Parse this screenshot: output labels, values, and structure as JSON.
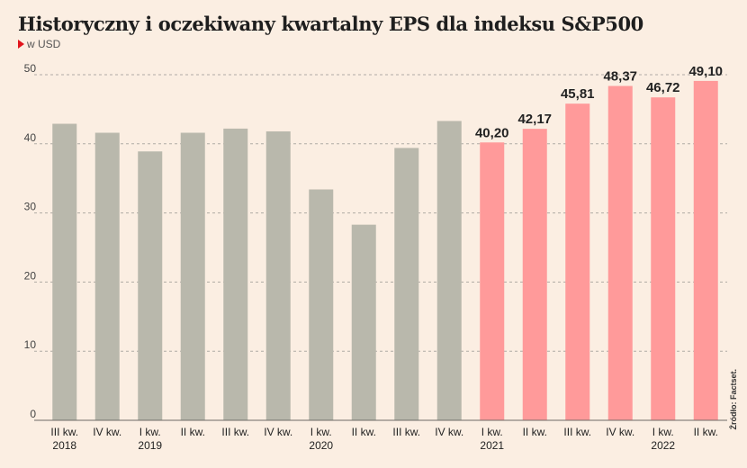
{
  "title": "Historyczny i oczekiwany kwartalny EPS dla indeksu S&P500",
  "subtitle": "w USD",
  "source": "Źródło: Factset.",
  "colors": {
    "historical": "#b9b8ac",
    "forecast": "#ff9a9a",
    "grid": "#b0aba5"
  },
  "chart_data": {
    "type": "bar",
    "ylim": [
      0,
      50
    ],
    "yticks": [
      0,
      10,
      20,
      30,
      40,
      50
    ],
    "grid": true,
    "categories": [
      {
        "line1": "III kw.",
        "line2": "2018"
      },
      {
        "line1": "IV kw.",
        "line2": ""
      },
      {
        "line1": "I kw.",
        "line2": "2019"
      },
      {
        "line1": "II kw.",
        "line2": ""
      },
      {
        "line1": "III kw.",
        "line2": ""
      },
      {
        "line1": "IV kw.",
        "line2": ""
      },
      {
        "line1": "I kw.",
        "line2": "2020"
      },
      {
        "line1": "II kw.",
        "line2": ""
      },
      {
        "line1": "III kw.",
        "line2": ""
      },
      {
        "line1": "IV kw.",
        "line2": ""
      },
      {
        "line1": "I kw.",
        "line2": "2021"
      },
      {
        "line1": "II kw.",
        "line2": ""
      },
      {
        "line1": "III kw.",
        "line2": ""
      },
      {
        "line1": "IV kw.",
        "line2": ""
      },
      {
        "line1": "I kw.",
        "line2": "2022"
      },
      {
        "line1": "II kw.",
        "line2": ""
      }
    ],
    "values": [
      42.9,
      41.6,
      38.9,
      41.6,
      42.2,
      41.8,
      33.4,
      28.3,
      39.4,
      43.3,
      40.2,
      42.17,
      45.81,
      48.37,
      46.72,
      49.1
    ],
    "forecast": [
      false,
      false,
      false,
      false,
      false,
      false,
      false,
      false,
      false,
      false,
      true,
      true,
      true,
      true,
      true,
      true
    ],
    "data_labels": [
      "",
      "",
      "",
      "",
      "",
      "",
      "",
      "",
      "",
      "",
      "40,20",
      "42,17",
      "45,81",
      "48,37",
      "46,72",
      "49,10"
    ]
  }
}
